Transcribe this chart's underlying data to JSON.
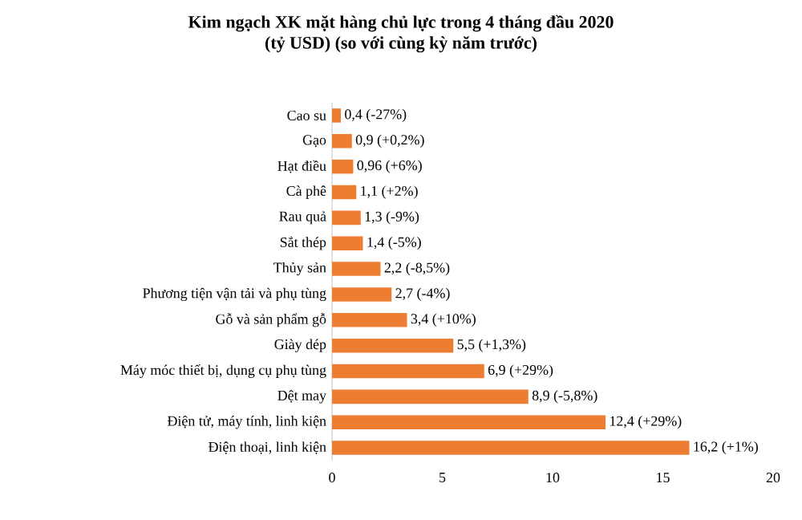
{
  "chart_data": {
    "type": "bar",
    "orientation": "horizontal",
    "title": "Kim ngạch XK mặt hàng chủ lực trong 4  tháng đầu 2020",
    "subtitle": "(tỷ USD) (so với cùng kỳ năm trước)",
    "categories": [
      "Cao su",
      "Gạo",
      "Hạt điều",
      "Cà phê",
      "Rau quả",
      "Sắt thép",
      "Thủy sản",
      "Phương tiện vận tải và phụ tùng",
      "Gỗ và sản phẩm gỗ",
      "Giày dép",
      "Máy móc thiết bị, dụng cụ phụ tùng",
      "Dệt may",
      "Điện tử, máy tính, linh kiện",
      "Điện thoại, linh kiện"
    ],
    "values": [
      0.4,
      0.9,
      0.96,
      1.1,
      1.3,
      1.4,
      2.2,
      2.7,
      3.4,
      5.5,
      6.9,
      8.9,
      12.4,
      16.2
    ],
    "value_labels": [
      "0,4 (-27%)",
      "0,9 (+0,2%)",
      "0,96 (+6%)",
      "1,1 (+2%)",
      "1,3 (-9%)",
      "1,4 (-5%)",
      "2,2 (-8,5%)",
      "2,7 (-4%)",
      "3,4 (+10%)",
      "5,5 (+1,3%)",
      "6,9 (+29%)",
      "8,9 (-5,8%)",
      "12,4 (+29%)",
      "16,2 (+1%)"
    ],
    "color": "#ed7d31",
    "xlim": [
      0,
      20
    ],
    "xticks": [
      0,
      5,
      10,
      15,
      20
    ]
  }
}
